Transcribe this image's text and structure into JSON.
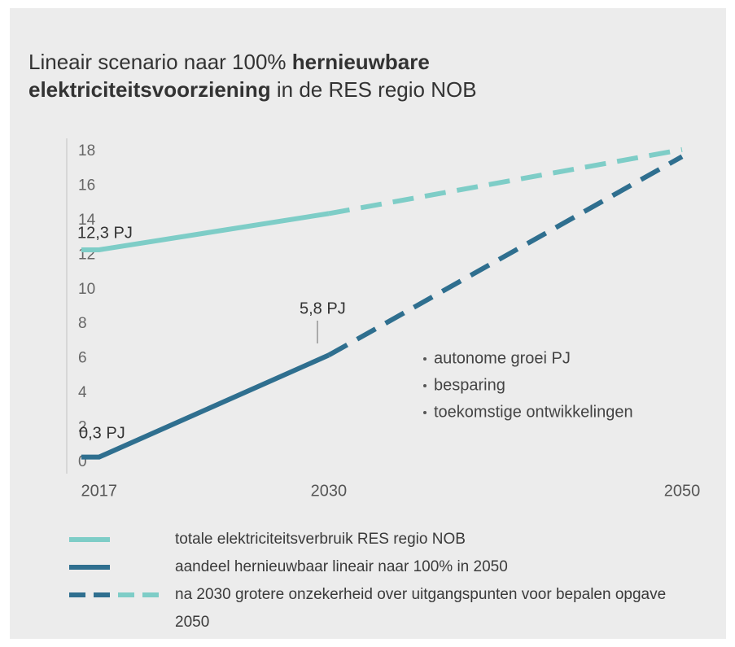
{
  "chart_data": {
    "type": "line",
    "title_lines": [
      [
        {
          "text": "Lineair scenario naar 100% ",
          "bold": false
        },
        {
          "text": "hernieuwbare",
          "bold": true
        }
      ],
      [
        {
          "text": "elektriciteitsvoorziening",
          "bold": true
        },
        {
          "text": " in de RES regio NOB",
          "bold": false
        }
      ]
    ],
    "x": [
      2016,
      2017,
      2030,
      2050
    ],
    "xlim": [
      2016,
      2050
    ],
    "xticks": [
      2017,
      2030,
      2050
    ],
    "ylim": [
      0,
      18
    ],
    "yticks": [
      0,
      2,
      4,
      6,
      8,
      10,
      12,
      14,
      16,
      18
    ],
    "series": [
      {
        "name": "totale elektriciteitsverbruik RES regio NOB",
        "color": "#7ecdc7",
        "dashed": false,
        "values": [
          12.3,
          12.3,
          14.4,
          null
        ]
      },
      {
        "name": "aandeel hernieuwbaar lineair naar 100% in 2050",
        "color": "#2f6f8f",
        "dashed": false,
        "values": [
          0.3,
          0.3,
          6.2,
          null
        ]
      },
      {
        "name": "na 2030 grotere onzekerheid over uitgangspunten voor bepalen opgave 2050",
        "color": "#2f6f8f",
        "dashed": true,
        "values": [
          null,
          null,
          6.2,
          17.7
        ]
      },
      {
        "color": "#7ecdc7",
        "dashed": true,
        "values": [
          null,
          null,
          14.4,
          18.1
        ]
      }
    ],
    "annotations": [
      "12,3 PJ",
      "0,3 PJ",
      "5,8 PJ"
    ],
    "notes": [
      "autonome groei PJ",
      "besparing",
      "toekomstige ontwikkelingen"
    ]
  }
}
